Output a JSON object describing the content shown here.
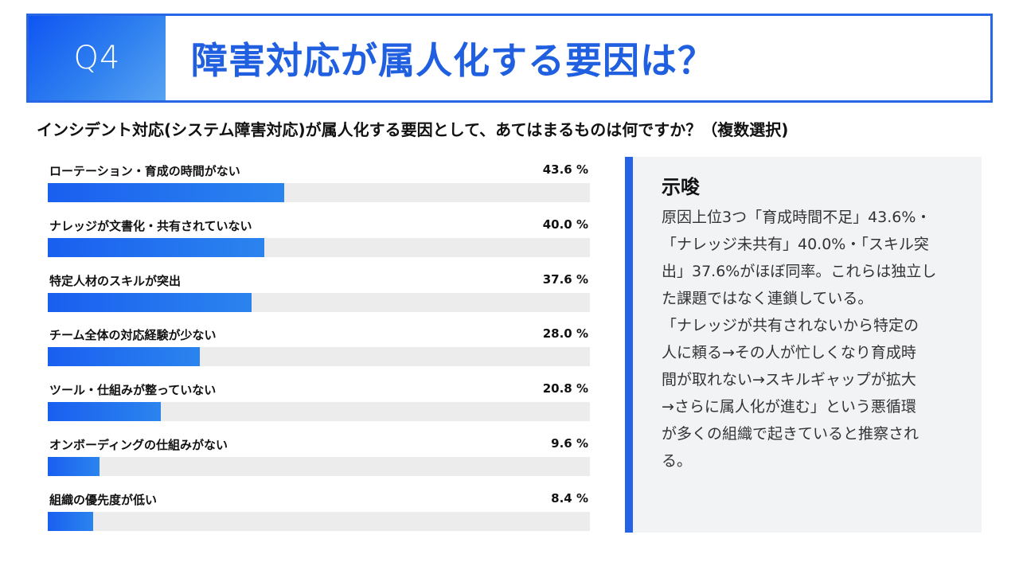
{
  "header": {
    "q_label": "Q4",
    "title": "障害対応が属人化する要因は？"
  },
  "subtitle": "インシデント対応(システム障害対応)が属人化する要因として、あてはまるものは何ですか？（複数選択)",
  "chart_data": {
    "type": "bar",
    "orientation": "horizontal",
    "categories": [
      "ローテーション・育成の時間がない",
      "ナレッジが文書化・共有されていない",
      "特定人材のスキルが突出",
      "チーム全体の対応経験が少ない",
      "ツール・仕組みが整っていない",
      "オンボーディングの仕組みがない",
      "組織の優先度が低い"
    ],
    "values": [
      43.6,
      40.0,
      37.6,
      28.0,
      20.8,
      9.6,
      8.4
    ],
    "value_labels": [
      "43.6 %",
      "40.0 %",
      "37.6 %",
      "28.0 %",
      "20.8 %",
      "9.6 %",
      "8.4 %"
    ],
    "xlim": [
      0,
      100
    ],
    "title": "",
    "xlabel": "",
    "ylabel": "",
    "bar_color": "#1f66ee",
    "track_color": "#ececec",
    "grid": false,
    "legend": "none"
  },
  "note": {
    "title": "示唆",
    "body": "原因上位3つ「育成時間不足」43.6%・\n「ナレッジ未共有」40.0%・「スキル突\n出」37.6%がほぼ同率。これらは独立し\nた課題ではなく連鎖している。\n「ナレッジが共有されないから特定の\n人に頼る→その人が忙しくなり育成時\n間が取れない→スキルギャップが拡大\n→さらに属人化が進む」という悪循環\nが多くの組織で起きていると推察され\nる。"
  },
  "colors": {
    "accent": "#2767e6",
    "title_text": "#1f5fe0",
    "note_bg": "#f1f3f5"
  }
}
